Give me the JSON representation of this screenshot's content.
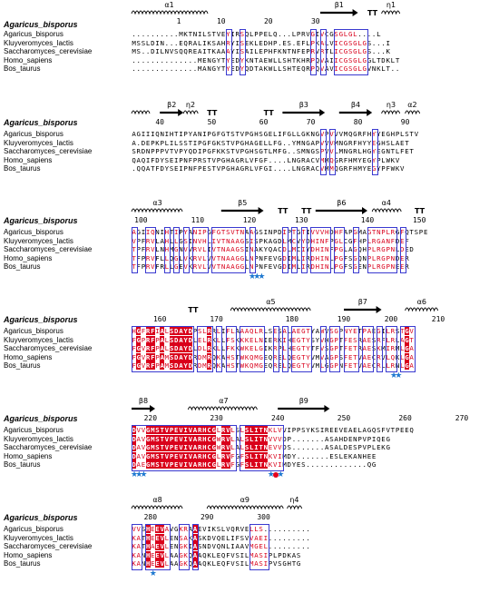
{
  "species": [
    "Agaricus_bisporus",
    "Kluyveromyces_lactis",
    "Saccharomyces_cerevisiae",
    "Homo_sapiens",
    "Bos_taurus"
  ],
  "title": "Agaricus_bisporus",
  "blocks": [
    {
      "ss": [
        {
          "type": "helix",
          "label": "α1",
          "from": 0,
          "to": 15
        },
        {
          "type": "strand",
          "label": "β1",
          "from": 40,
          "to": 47
        },
        {
          "type": "tt",
          "label": "TT",
          "at": 50
        },
        {
          "type": "helix",
          "label": "η1",
          "from": 53,
          "to": 56
        }
      ],
      "nums": [
        {
          "v": "1",
          "pos": 10
        },
        {
          "v": "10",
          "pos": 19
        },
        {
          "v": "20",
          "pos": 29
        },
        {
          "v": "30",
          "pos": 39
        }
      ],
      "seqs": [
        "..........MKTNILSTVEYIRSQLPPELQ...LPRVGIVCGSGLGL....L",
        "MSSLDIN...EQRALIKSAHRYISEKLEDHP.ES.EFLPKALVICGSGLGS...I",
        "MS..DILNVSQQREAITKAAAYISAILEPHFKNTNFEPRVRTLICGSGLGS...K",
        "..............MENGYTYEDYKNTAEWLLSHTKHRPQVAIICGSGLGGLTDKLT",
        "..............MANGYTYEDYQDTAKWLLSHTEQRPQVAVICGSGLGVNKLT.."
      ],
      "stars": [],
      "redDots": []
    },
    {
      "ss": [
        {
          "type": "coil",
          "label": "",
          "from": 0,
          "to": 3
        },
        {
          "type": "strand",
          "label": "β2",
          "from": 6,
          "to": 10
        },
        {
          "type": "helix",
          "label": "η2",
          "from": 11,
          "to": 13
        },
        {
          "type": "tt",
          "label": "TT",
          "at": 16
        },
        {
          "type": "tt",
          "label": "TT",
          "at": 28
        },
        {
          "type": "strand",
          "label": "β3",
          "from": 32,
          "to": 40
        },
        {
          "type": "strand",
          "label": "β4",
          "from": 44,
          "to": 50
        },
        {
          "type": "helix",
          "label": "η3",
          "from": 53,
          "to": 56
        },
        {
          "type": "helix",
          "label": "α2",
          "from": 58,
          "to": 60
        }
      ],
      "nums": [
        {
          "v": "40",
          "pos": 6
        },
        {
          "v": "50",
          "pos": 17
        },
        {
          "v": "60",
          "pos": 28
        },
        {
          "v": "70",
          "pos": 38
        },
        {
          "v": "80",
          "pos": 48
        },
        {
          "v": "90",
          "pos": 58
        }
      ],
      "seqs": [
        "AGIIIQNIHTIPYANIPGFGTSTVPGHSGELIFGLLGKNGVPVVVMQGRFHYYEGHPLSTV",
        "A.DEPKPLILSSTIPGFGKSTVPGHAGELLFG..YMNGAPVVVMNGRFHYYEGHSLAET",
        "SRDNPPPVTVPYQDIPGFKKSTVPGHSGTLMFG..SMNGSPVVLMNGRLHGYEGNTLFET",
        "QAQIFDYSEIPNFPRSTVPGHAGRLVFGF....LNGRACVMMQGRFHMYEGYPLWKV",
        ".QQATFDYSEIPNFPESTVPGHAGRLVFGI....LNGRACVMMQGRFHMYEGYPFWKV"
      ],
      "stars": [],
      "redDots": []
    },
    {
      "ss": [
        {
          "type": "helix",
          "label": "α3",
          "from": 0,
          "to": 10
        },
        {
          "type": "strand",
          "label": "β5",
          "from": 19,
          "to": 27
        },
        {
          "type": "tt",
          "label": "TT",
          "at": 31
        },
        {
          "type": "tt",
          "label": "TT",
          "at": 36
        },
        {
          "type": "strand",
          "label": "β6",
          "from": 39,
          "to": 49
        },
        {
          "type": "helix",
          "label": "α4",
          "from": 51,
          "to": 56
        },
        {
          "type": "tt",
          "label": "TT",
          "at": 60
        }
      ],
      "nums": [
        {
          "v": "100",
          "pos": 2
        },
        {
          "v": "110",
          "pos": 14
        },
        {
          "v": "120",
          "pos": 25
        },
        {
          "v": "130",
          "pos": 36
        },
        {
          "v": "140",
          "pos": 50
        },
        {
          "v": "150",
          "pos": 61
        }
      ],
      "seqs": [
        "AGIIQNIHTIPYANIPGFGTSVTNAAGSINPDIPTGTIVVVHDHFAPGMAGTNPLRGFQTSPE",
        "VPFRVLAHLLGSINVHLIVTNAAGSISPKAGDLMCVYDHINFPGLCGFHPLRGANFDEF",
        "TPFRVLNHMGNVVRVLIVTNAAGSINAKYQACDLMCIYDHINFPGLAGQHPLRGPNLDED",
        "TFPRVFLLQGLVKRVLVVTNAAGGLNPNFEVGDIMLIRDHINLPGFSGQNPLRGPNDER",
        "TFPRVFRLLGEVKRVLVVTNAAGGLNPNFEVGDIMLIRDHINLPGFSGENPLRGPNEER"
      ],
      "stars": [
        25,
        26,
        27
      ],
      "redDots": []
    },
    {
      "ss": [
        {
          "type": "tt",
          "label": "TT",
          "at": 12
        },
        {
          "type": "helix",
          "label": "α5",
          "from": 21,
          "to": 37
        },
        {
          "type": "strand",
          "label": "β7",
          "from": 45,
          "to": 52
        },
        {
          "type": "helix",
          "label": "α6",
          "from": 58,
          "to": 64
        }
      ],
      "nums": [
        {
          "v": "160",
          "pos": 6
        },
        {
          "v": "170",
          "pos": 18
        },
        {
          "v": "180",
          "pos": 34
        },
        {
          "v": "190",
          "pos": 45
        },
        {
          "v": "200",
          "pos": 55
        },
        {
          "v": "210",
          "pos": 65
        }
      ],
      "seqs": [
        "HGFRFIALSDAYDPSLRRLIFLAAAQLRLSESALAEGTYAWVSGPNYETPAEGILRSTGV",
        "FGPRFPALSDAYDLELRKLLFSKKKELNIERKIHEGTYSYVHGPTFESRAESRFLRLAGT",
        "FGVRFPALSDAYDLDLRKLLFKKWKELGIKRPLHEGTYTFVSGPTFETRAESKMIRMLGA",
        "FGVRFPAMSDAYDRDMRQKAHSTWKQMGEQRELQEGTYVMVAGPSFETVAECRVLQKLGA",
        "FGVRFPAMSDAYDRDMRQKAHSTWKQMGEQRELQEGTYVMLGGPNFETVAECRLLRNLGA"
      ],
      "stars": [
        55,
        56
      ],
      "redDots": []
    },
    {
      "ss": [
        {
          "type": "strand",
          "label": "β8",
          "from": 0,
          "to": 4
        },
        {
          "type": "helix",
          "label": "α7",
          "from": 12,
          "to": 26
        },
        {
          "type": "strand",
          "label": "β9",
          "from": 31,
          "to": 41
        }
      ],
      "nums": [
        {
          "v": "220",
          "pos": 4
        },
        {
          "v": "230",
          "pos": 18
        },
        {
          "v": "240",
          "pos": 31
        },
        {
          "v": "250",
          "pos": 45
        },
        {
          "v": "260",
          "pos": 58
        },
        {
          "v": "270",
          "pos": 70
        }
      ],
      "seqs": [
        "DVVGMSTVPEVIVARHCGLRVLSLSLITNKLVVIPPSYKSIREEVEAELAGQSFVTPEEQ",
        "DAVGMSTVPEVIVARHCGWRVLALSLITNVVVDP.......ASAHDENPVPIQEG",
        "DAVGMSTVPEVIVARHCGWRVLALSLITNEVVDS.......ASALDESPVPLEKG",
        "DAVGMSTVPEVIVARHCGLRVFGFSLITNKVIMDY.......ESLEKANHEE",
        "DAEGMSTVPEVIVARHCGLRVFGFSLITNKVIMDYES.............QG"
      ],
      "stars": [
        0,
        1,
        2,
        29,
        31
      ],
      "redDots": [
        30
      ]
    },
    {
      "ss": [
        {
          "type": "helix",
          "label": "α8",
          "from": 0,
          "to": 10
        },
        {
          "type": "helix",
          "label": "α9",
          "from": 16,
          "to": 31
        },
        {
          "type": "helix",
          "label": "η4",
          "from": 33,
          "to": 35
        }
      ],
      "nums": [
        {
          "v": "280",
          "pos": 4
        },
        {
          "v": "290",
          "pos": 16
        },
        {
          "v": "300",
          "pos": 28
        }
      ],
      "seqs": [
        "VVSHEEVAVGKRAAEVIKSLVQRVELLS..........",
        "KATHEEVLENSAKASKDVQELIFSVVAEI.........",
        "KATHAEVLENGKIASNDVQNLIAAVMGEL.........",
        "KANHEEVLAAGKQAAQKLEQFVSILMASIPLPDKAS",
        "KANHEEVLAAGKQAAQKLEQFVSILMASIPVSGHTG"
      ],
      "stars": [
        4
      ],
      "redDots": []
    }
  ]
}
